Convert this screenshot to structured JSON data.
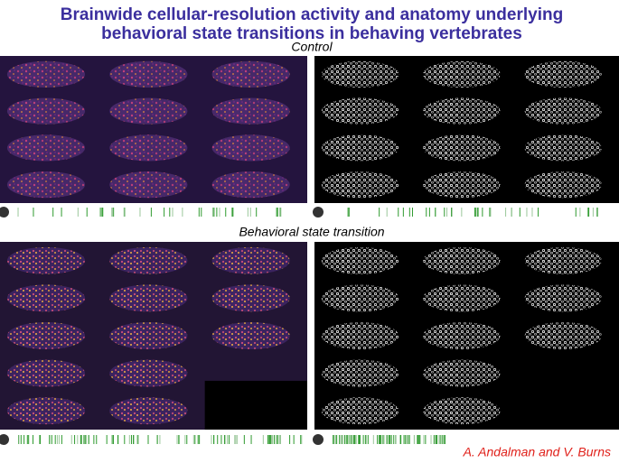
{
  "header": {
    "title_lines": [
      "Brainwide cellular-resolution activity and anatomy underlying",
      "behavioral state transitions in behaving vertebrates"
    ]
  },
  "panels": [
    {
      "label": "Control"
    },
    {
      "label": "Behavioral state transition"
    }
  ],
  "credit": "A. Andalman and V. Burns"
}
